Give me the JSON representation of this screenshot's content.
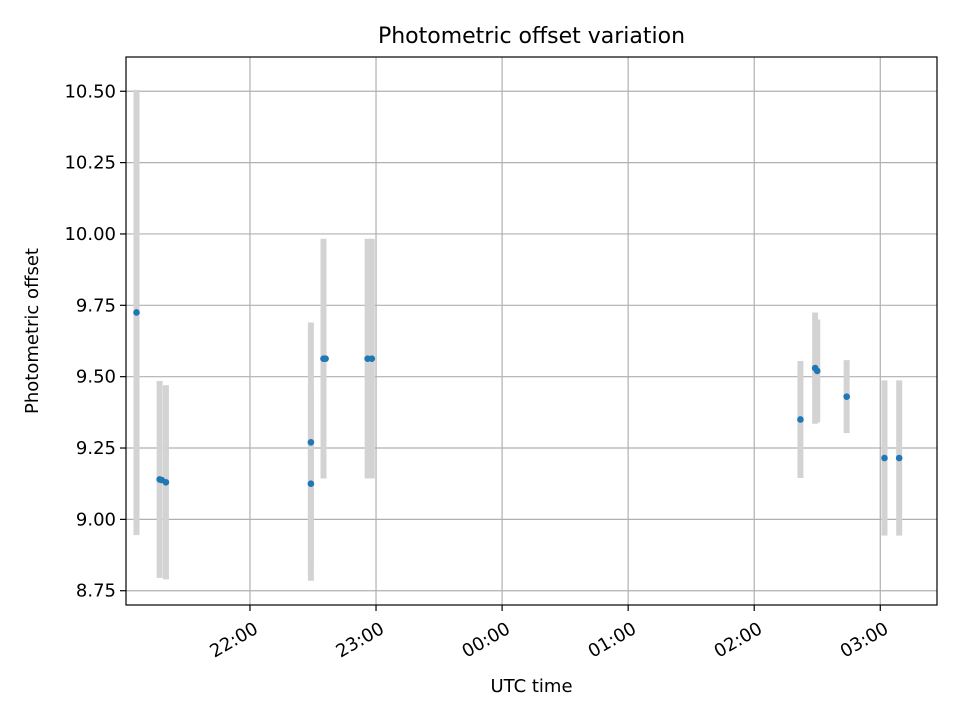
{
  "chart_data": {
    "type": "scatter",
    "title": "Photometric offset variation",
    "xlabel": "UTC time",
    "ylabel": "Photometric offset",
    "grid": true,
    "legend": "none",
    "x_ticks": [
      "22:00",
      "23:00",
      "00:00",
      "01:00",
      "02:00",
      "03:00"
    ],
    "y_ticks": [
      "8.75",
      "9.00",
      "9.25",
      "9.50",
      "9.75",
      "10.00",
      "10.25",
      "10.50"
    ],
    "xlim": [
      "21:01",
      "03:27"
    ],
    "ylim": [
      8.7,
      10.62
    ],
    "points": [
      {
        "time": "21:06",
        "y": 9.725,
        "err": 0.78
      },
      {
        "time": "21:17",
        "y": 9.14,
        "err": 0.345
      },
      {
        "time": "21:20",
        "y": 9.13,
        "err": 0.34
      },
      {
        "time": "21:18",
        "y": 9.138,
        "err": 0.0
      },
      {
        "time": "22:29",
        "y": 9.27,
        "err": 0.42
      },
      {
        "time": "22:29",
        "y": 9.125,
        "err": 0.34
      },
      {
        "time": "22:35",
        "y": 9.563,
        "err": 0.42
      },
      {
        "time": "22:36",
        "y": 9.563,
        "err": 0.0
      },
      {
        "time": "22:56",
        "y": 9.563,
        "err": 0.42
      },
      {
        "time": "22:58",
        "y": 9.563,
        "err": 0.42
      },
      {
        "time": "02:22",
        "y": 9.35,
        "err": 0.205
      },
      {
        "time": "02:29",
        "y": 9.53,
        "err": 0.195
      },
      {
        "time": "02:30",
        "y": 9.52,
        "err": 0.18
      },
      {
        "time": "02:44",
        "y": 9.43,
        "err": 0.128
      },
      {
        "time": "03:02",
        "y": 9.215,
        "err": 0.272
      },
      {
        "time": "03:09",
        "y": 9.215,
        "err": 0.272
      }
    ],
    "colors": {
      "point": "#1f77b4",
      "errorbar": "#d3d3d3",
      "grid": "#b0b0b0",
      "axes": "#000000"
    }
  }
}
